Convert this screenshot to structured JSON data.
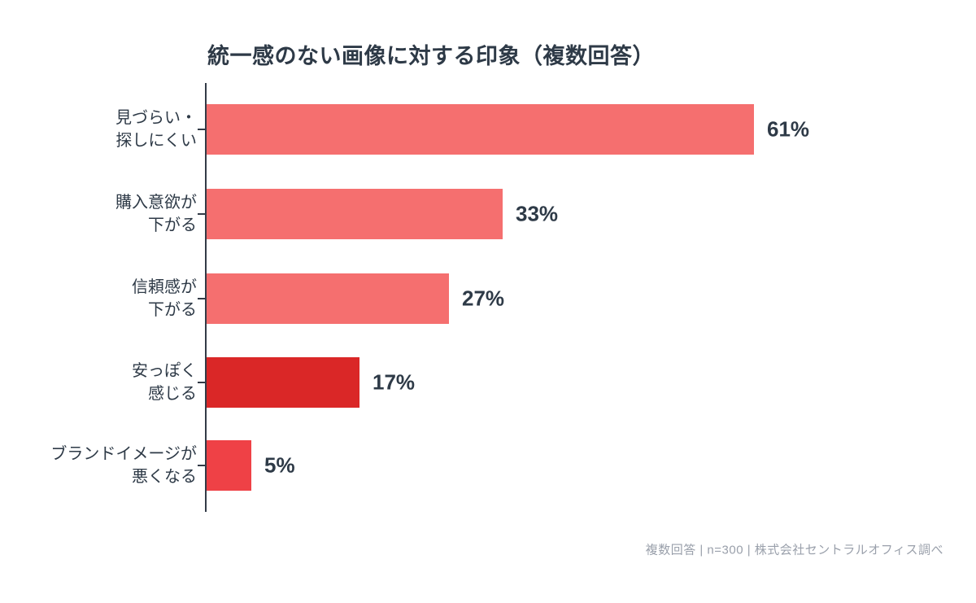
{
  "title": "統一感のない画像に対する印象（複数回答）",
  "footer": "複数回答 | n=300 | 株式会社セントラルオフィス調べ",
  "colors": {
    "text_dark": "#2E3A47",
    "footer_gray": "#9AA0AB",
    "axis": "#333B47",
    "bar_salmon": "#F56F6F",
    "bar_deep_red": "#DA2727",
    "bar_bright_red": "#EF4146",
    "background": "#FFFFFF"
  },
  "chart_data": {
    "type": "bar",
    "orientation": "horizontal",
    "title": "統一感のない画像に対する印象（複数回答）",
    "categories": [
      "見づらい・探しにくい",
      "購入意欲が下がる",
      "信頼感が下がる",
      "安っぽく感じる",
      "ブランドイメージが悪くなる"
    ],
    "category_line_breaks": [
      [
        "見づらい・",
        "探しにくい"
      ],
      [
        "購入意欲が",
        "下がる"
      ],
      [
        "信頼感が",
        "下がる"
      ],
      [
        "安っぽく",
        "感じる"
      ],
      [
        "ブランドイメージが",
        "悪くなる"
      ]
    ],
    "values": [
      61,
      33,
      27,
      17,
      5
    ],
    "value_labels": [
      "61%",
      "33%",
      "27%",
      "17%",
      "5%"
    ],
    "bar_colors": [
      "#F56F6F",
      "#F56F6F",
      "#F56F6F",
      "#DA2727",
      "#EF4146"
    ],
    "xlim": [
      0,
      65
    ],
    "grid": false,
    "legend": "none",
    "source_note": "複数回答 | n=300 | 株式会社セントラルオフィス調べ"
  }
}
